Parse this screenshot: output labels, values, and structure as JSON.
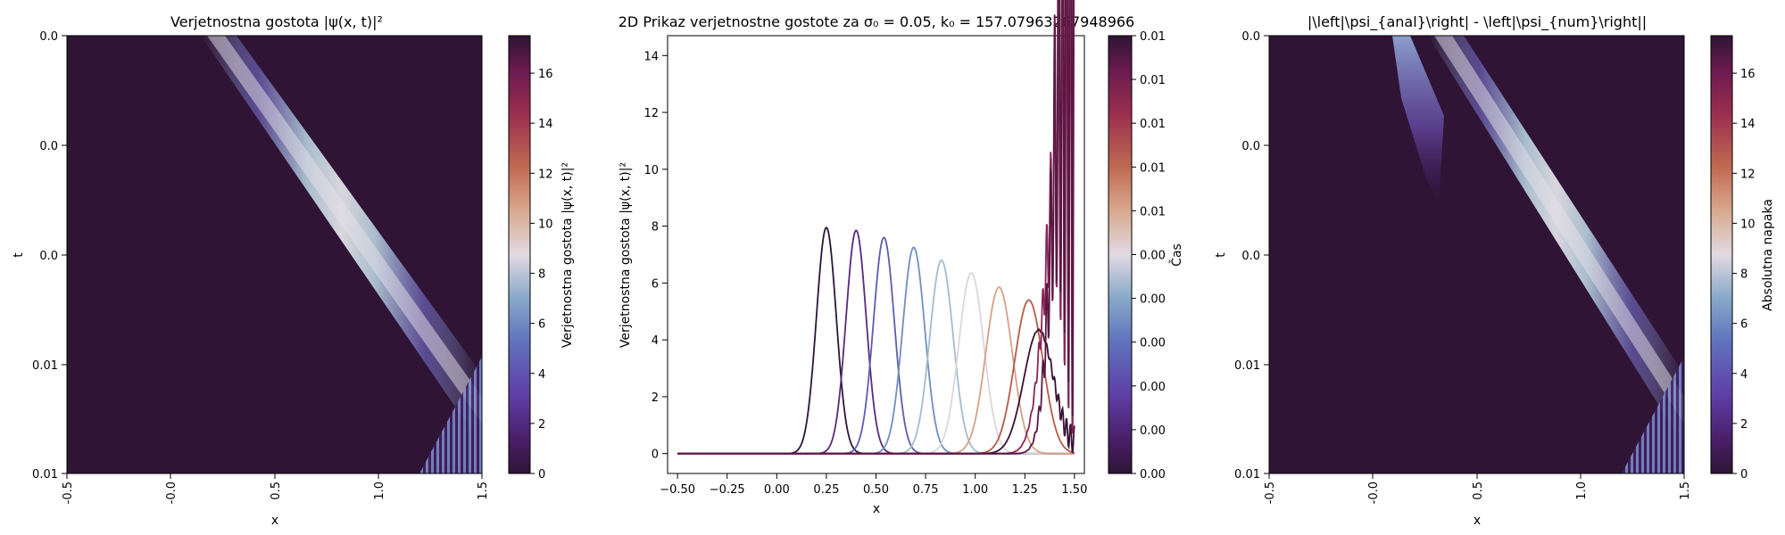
{
  "chart_data": [
    {
      "type": "heatmap",
      "title": "Verjetnostna gostota |ψ(x, t)|²",
      "xlabel": "x",
      "ylabel": "t",
      "x_ticks": [
        "-0.5",
        "-0.0",
        "0.5",
        "1.0",
        "1.5"
      ],
      "y_ticks": [
        "0.0",
        "0.0",
        "0.0",
        "0.01",
        "0.01"
      ],
      "xlim": [
        -0.5,
        1.5
      ],
      "colorbar": {
        "label": "Verjetnostna gostota |ψ(x, t)|²",
        "ticks": [
          "0",
          "2",
          "4",
          "6",
          "8",
          "10",
          "12",
          "14",
          "16"
        ],
        "range": [
          0,
          17.5
        ],
        "colormap": "twilight_shifted"
      },
      "wavepacket": {
        "x_start": 0.25,
        "x_end": 1.5,
        "peak": 8,
        "sigma": 0.05,
        "reflection_fringes": true
      }
    },
    {
      "type": "line",
      "title": "2D Prikaz verjetnostne gostote za σ₀ = 0.05, k₀ = 157.07963267948966",
      "xlabel": "x",
      "ylabel": "Verjetnostna gostota |ψ(x, t)|²",
      "xlim": [
        -0.55,
        1.55
      ],
      "ylim": [
        -0.7,
        14.7
      ],
      "x_ticks": [
        "−0.50",
        "−0.25",
        "0.00",
        "0.25",
        "0.50",
        "0.75",
        "1.00",
        "1.25",
        "1.50"
      ],
      "y_ticks": [
        "0",
        "2",
        "4",
        "6",
        "8",
        "10",
        "12",
        "14"
      ],
      "series": [
        {
          "center": 0.25,
          "peak": 7.95,
          "width": 0.05,
          "color": "#2e1539"
        },
        {
          "center": 0.4,
          "peak": 7.85,
          "width": 0.051,
          "color": "#5a2a7a"
        },
        {
          "center": 0.54,
          "peak": 7.6,
          "width": 0.053,
          "color": "#5d5cb3"
        },
        {
          "center": 0.69,
          "peak": 7.25,
          "width": 0.056,
          "color": "#6f8fc0"
        },
        {
          "center": 0.83,
          "peak": 6.8,
          "width": 0.059,
          "color": "#a4bccb"
        },
        {
          "center": 0.98,
          "peak": 6.35,
          "width": 0.063,
          "color": "#dcd6da"
        },
        {
          "center": 1.12,
          "peak": 5.85,
          "width": 0.067,
          "color": "#d3a187"
        },
        {
          "center": 1.27,
          "peak": 5.4,
          "width": 0.071,
          "color": "#b85a4a"
        },
        {
          "center": 1.32,
          "peak": 4.35,
          "width": 0.075,
          "color": "#3a1234",
          "kind": "reflecting"
        },
        {
          "center": 1.42,
          "peak": 9.6,
          "width": 0.07,
          "color": "#8b2556",
          "kind": "reflecting"
        },
        {
          "center": 1.45,
          "peak": 14.0,
          "width": 0.06,
          "color": "#5a1843",
          "kind": "reflecting"
        }
      ],
      "colorbar": {
        "label": "Čas",
        "ticks": [
          "0.01",
          "0.01",
          "0.01",
          "0.01",
          "0.01",
          "0.00",
          "0.00",
          "0.00",
          "0.00",
          "0.00",
          "0.00"
        ],
        "colormap": "twilight_shifted"
      }
    },
    {
      "type": "heatmap",
      "title": "|\\left|\\psi_{anal}\\right| - \\left|\\psi_{num}\\right||",
      "xlabel": "x",
      "ylabel": "t",
      "x_ticks": [
        "-0.5",
        "-0.0",
        "0.5",
        "1.0",
        "1.5"
      ],
      "y_ticks": [
        "0.0",
        "0.0",
        "0.0",
        "0.01",
        "0.01"
      ],
      "xlim": [
        -0.5,
        1.5
      ],
      "colorbar": {
        "label": "Absolutna napaka",
        "ticks": [
          "0",
          "2",
          "4",
          "6",
          "8",
          "10",
          "12",
          "14",
          "16"
        ],
        "range": [
          0,
          17.5
        ],
        "colormap": "twilight_shifted"
      },
      "ghost_packet": {
        "x_start": 0.22,
        "fade_time_fraction": 0.38
      }
    }
  ]
}
